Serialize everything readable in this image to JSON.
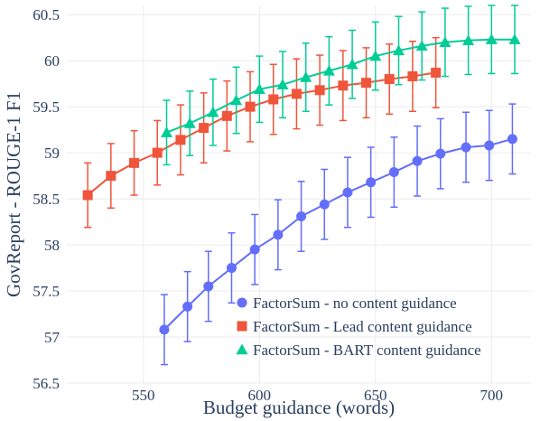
{
  "chart_data": {
    "type": "line",
    "title": "",
    "xlabel": "Budget guidance (words)",
    "ylabel": "GovReport - ROUGE-1 F1",
    "xlim": [
      517,
      717
    ],
    "ylim": [
      56.5,
      60.6
    ],
    "xticks": [
      550,
      600,
      650,
      700
    ],
    "yticks": [
      56.5,
      57,
      57.5,
      58,
      58.5,
      59,
      59.5,
      60,
      60.5
    ],
    "xtick_labels": [
      "550",
      "600",
      "650",
      "700"
    ],
    "ytick_labels": [
      "56.5",
      "57",
      "57.5",
      "58",
      "58.5",
      "59",
      "59.5",
      "60",
      "60.5"
    ],
    "grid": true,
    "legend_position": "bottom-right",
    "series": [
      {
        "name": "FactorSum - no content guidance",
        "color": "#636efa",
        "marker": "circle",
        "x": [
          559,
          569,
          578,
          588,
          598,
          608,
          618,
          628,
          638,
          648,
          658,
          668,
          678,
          689,
          699,
          709
        ],
        "y": [
          57.08,
          57.33,
          57.55,
          57.75,
          57.95,
          58.11,
          58.31,
          58.44,
          58.57,
          58.68,
          58.79,
          58.91,
          58.99,
          59.06,
          59.08,
          59.15
        ],
        "err": [
          0.38,
          0.38,
          0.38,
          0.38,
          0.38,
          0.38,
          0.38,
          0.38,
          0.38,
          0.38,
          0.38,
          0.38,
          0.38,
          0.38,
          0.38,
          0.38
        ]
      },
      {
        "name": "FactorSum - Lead content guidance",
        "color": "#ef553b",
        "marker": "square",
        "x": [
          526,
          536,
          546,
          556,
          566,
          576,
          586,
          596,
          606,
          616,
          626,
          636,
          646,
          656,
          666,
          676
        ],
        "y": [
          58.54,
          58.75,
          58.89,
          59.0,
          59.14,
          59.27,
          59.4,
          59.5,
          59.58,
          59.64,
          59.68,
          59.73,
          59.76,
          59.8,
          59.83,
          59.87
        ],
        "err": [
          0.35,
          0.35,
          0.35,
          0.35,
          0.38,
          0.38,
          0.38,
          0.38,
          0.38,
          0.38,
          0.38,
          0.38,
          0.38,
          0.38,
          0.38,
          0.38
        ]
      },
      {
        "name": "FactorSum - BART content guidance",
        "color": "#00cc96",
        "marker": "triangle-up",
        "x": [
          560,
          570,
          580,
          590,
          600,
          610,
          620,
          630,
          640,
          650,
          660,
          670,
          680,
          690,
          700,
          710
        ],
        "y": [
          59.22,
          59.32,
          59.44,
          59.57,
          59.69,
          59.74,
          59.82,
          59.89,
          59.96,
          60.05,
          60.11,
          60.16,
          60.2,
          60.22,
          60.23,
          60.23
        ],
        "err": [
          0.35,
          0.35,
          0.36,
          0.36,
          0.36,
          0.36,
          0.37,
          0.37,
          0.37,
          0.37,
          0.37,
          0.37,
          0.37,
          0.37,
          0.37,
          0.37
        ]
      }
    ]
  }
}
